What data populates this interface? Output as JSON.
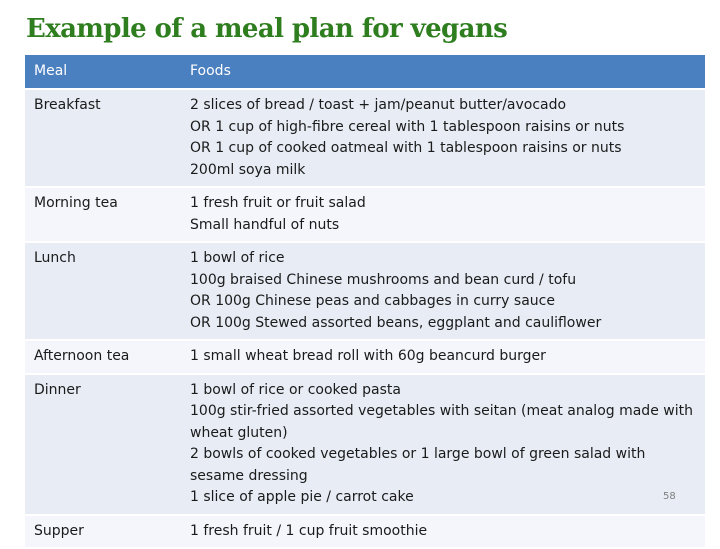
{
  "title": "Example of a meal plan for vegans",
  "table": {
    "headers": [
      "Meal",
      "Foods"
    ],
    "rows": [
      {
        "meal": "Breakfast",
        "foods": [
          "2 slices of bread / toast + jam/peanut butter/avocado",
          "OR 1 cup of high-fibre cereal with 1 tablespoon raisins or nuts",
          "OR 1 cup of cooked oatmeal with 1 tablespoon raisins or nuts",
          "200ml soya milk"
        ]
      },
      {
        "meal": "Morning tea",
        "foods": [
          "1 fresh fruit or fruit salad",
          "Small handful of nuts"
        ]
      },
      {
        "meal": "Lunch",
        "foods": [
          "1 bowl of rice",
          "100g braised Chinese mushrooms and bean curd / tofu",
          "OR 100g Chinese peas and cabbages in curry sauce",
          "OR 100g Stewed assorted beans, eggplant and cauliflower"
        ]
      },
      {
        "meal": "Afternoon tea",
        "foods": [
          "1 small wheat bread roll with 60g beancurd burger"
        ]
      },
      {
        "meal": "Dinner",
        "foods": [
          "1 bowl of rice or cooked pasta",
          "100g stir-fried assorted vegetables with seitan (meat analog made with wheat gluten)",
          "2 bowls of cooked vegetables or 1 large bowl of green salad with sesame dressing",
          "1 slice of apple pie / carrot cake"
        ]
      },
      {
        "meal": "Supper",
        "foods": [
          "1 fresh fruit / 1 cup fruit smoothie"
        ]
      }
    ]
  },
  "page_number": "58",
  "colors": {
    "title": "#2e7d1e",
    "header_bg": "#4a7fc0",
    "row_bg": "#e7ecf5",
    "row_alt_bg": "#f4f6fb"
  }
}
